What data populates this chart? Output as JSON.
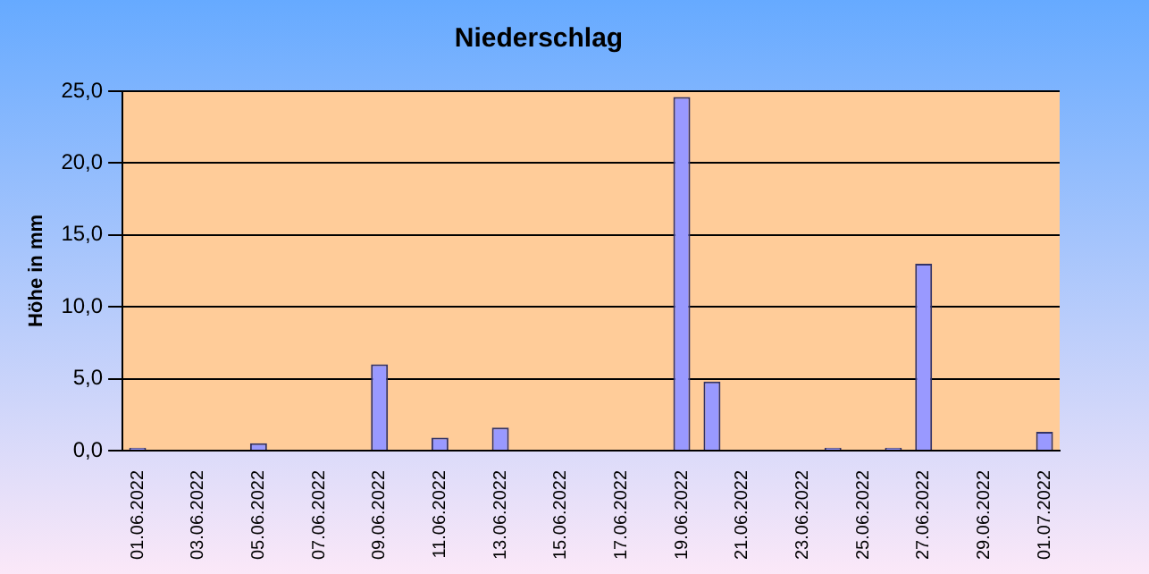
{
  "chart_data": {
    "type": "bar",
    "title": "Niederschlag",
    "ylabel": "Höhe in mm",
    "categories": [
      "01.06.2022",
      null,
      "03.06.2022",
      null,
      "05.06.2022",
      null,
      "07.06.2022",
      null,
      "09.06.2022",
      null,
      "11.06.2022",
      null,
      "13.06.2022",
      null,
      "15.06.2022",
      null,
      "17.06.2022",
      null,
      "19.06.2022",
      null,
      "21.06.2022",
      null,
      "23.06.2022",
      null,
      "25.06.2022",
      null,
      "27.06.2022",
      null,
      "29.06.2022",
      null,
      "01.07.2022"
    ],
    "values": [
      0.2,
      0,
      0,
      0,
      0.5,
      0,
      0,
      0,
      6.0,
      0,
      0.9,
      0,
      1.6,
      0,
      0,
      0,
      0,
      0,
      24.6,
      4.8,
      0,
      0,
      0,
      0.2,
      0,
      0.2,
      13.0,
      0,
      0,
      0,
      1.3
    ],
    "color": "#9999ff",
    "ylim": [
      0,
      25
    ],
    "yticks": [
      {
        "value": 0,
        "label": "0,0"
      },
      {
        "value": 5,
        "label": "5,0"
      },
      {
        "value": 10,
        "label": "10,0"
      },
      {
        "value": 15,
        "label": "15,0"
      },
      {
        "value": 20,
        "label": "20,0"
      },
      {
        "value": 25,
        "label": "25,0"
      }
    ],
    "grid": "y",
    "legend": false
  }
}
